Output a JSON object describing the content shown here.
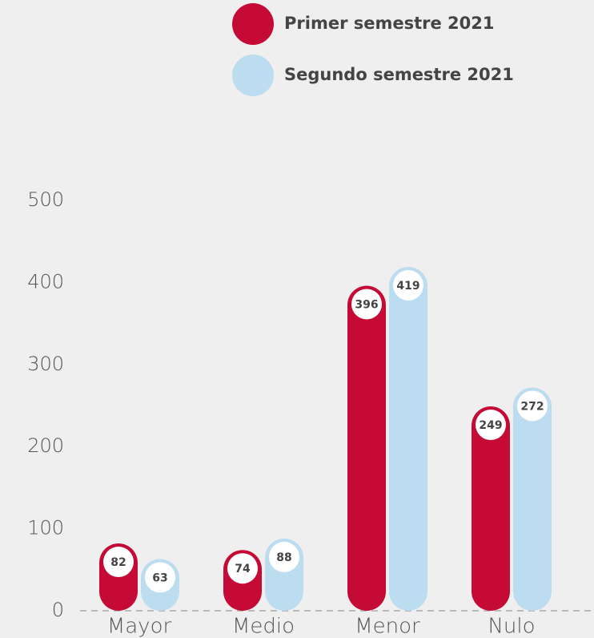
{
  "chart_data": {
    "type": "bar",
    "categories": [
      "Mayor",
      "Medio",
      "Menor",
      "Nulo"
    ],
    "series": [
      {
        "name": "Primer semestre 2021",
        "color": "#c40a35",
        "values": [
          82,
          74,
          396,
          249
        ]
      },
      {
        "name": "Segundo semestre 2021",
        "color": "#bcdcef",
        "values": [
          63,
          88,
          419,
          272
        ]
      }
    ],
    "ylim": [
      0,
      500
    ],
    "yticks": [
      0,
      100,
      200,
      300,
      400,
      500
    ]
  }
}
